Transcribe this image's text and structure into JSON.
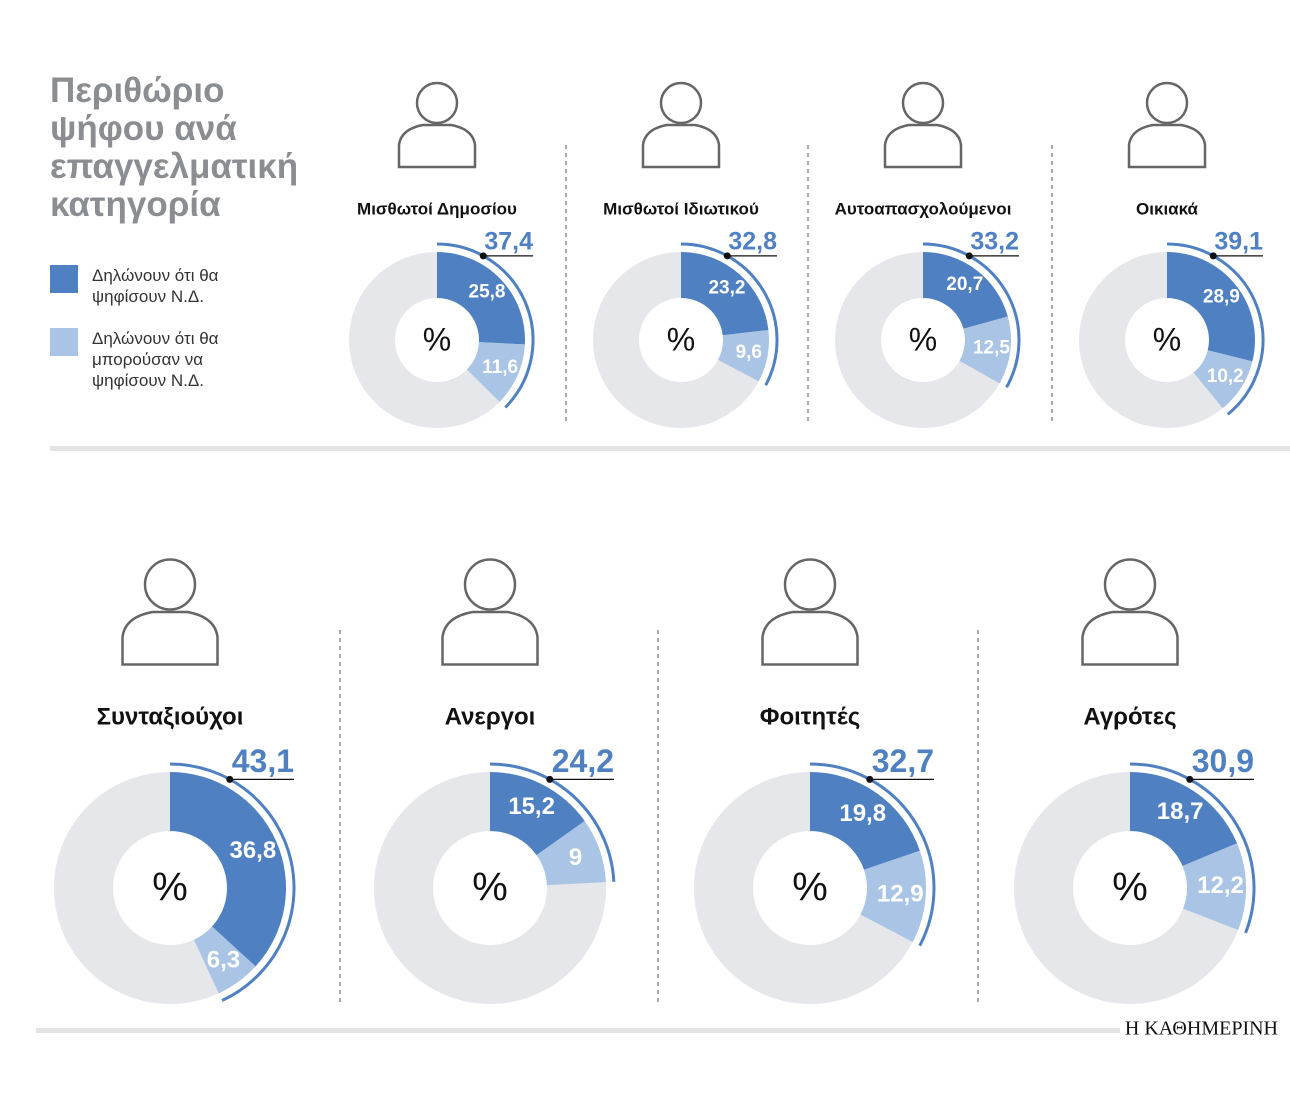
{
  "chart_data": {
    "type": "donut",
    "title": "Περιθώριο ψήφου ανά επαγγελματική κατηγορία",
    "categories": [
      "Μισθωτοί Δημοσίου",
      "Μισθωτοί Ιδιωτικού",
      "Αυτοαπασχολούμενοι",
      "Οικιακά",
      "Συνταξιούχοι",
      "Ανεργοι",
      "Φοιτητές",
      "Αγρότες"
    ],
    "series": [
      {
        "name": "Δηλώνουν ότι θα ψηφίσουν Ν.Δ.",
        "color": "#4f81c2",
        "values": [
          25.8,
          23.2,
          20.7,
          28.9,
          36.8,
          15.2,
          19.8,
          18.7
        ],
        "value_labels": [
          "25,8",
          "23,2",
          "20,7",
          "28,9",
          "36,8",
          "15,2",
          "19,8",
          "18,7"
        ]
      },
      {
        "name": "Δηλώνουν ότι θα μπορούσαν να ψηφίσουν Ν.Δ.",
        "color": "#a9c4e4",
        "values": [
          11.6,
          9.6,
          12.5,
          10.2,
          6.3,
          9,
          12.9,
          12.2
        ],
        "value_labels": [
          "11,6",
          "9,6",
          "12,5",
          "10,2",
          "6,3",
          "9",
          "12,9",
          "12,2"
        ]
      }
    ],
    "totals": [
      37.4,
      32.8,
      33.2,
      39.1,
      43.1,
      24.2,
      32.7,
      30.9
    ],
    "total_labels": [
      "37,4",
      "32,8",
      "33,2",
      "39,1",
      "43,1",
      "24,2",
      "32,7",
      "30,9"
    ],
    "max": 100,
    "center_label": "%",
    "source": "Η ΚΑΘΗΜΕΡΙΝΗ"
  }
}
